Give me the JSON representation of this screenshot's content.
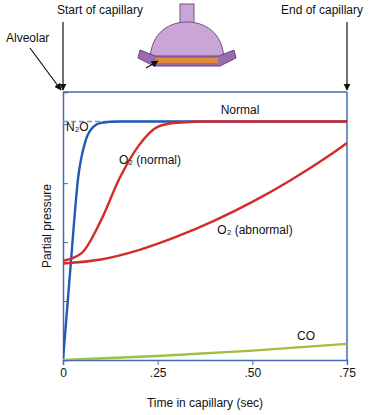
{
  "chart_data": {
    "type": "line",
    "x_label": "Time in capillary (sec)",
    "y_label": "Partial pressure",
    "annotations": [
      "Start of capillary",
      "End of capillary",
      "Alveolar"
    ],
    "xlim": [
      0,
      0.75
    ],
    "ylim": [
      0,
      100
    ],
    "xticks": [
      0,
      {
        "value": 0.25,
        "label": ".25"
      },
      {
        "value": 0.5,
        "label": ".50"
      },
      {
        "value": 0.75,
        "label": ".75"
      }
    ],
    "yticks": [
      0,
      22,
      44,
      66,
      88
    ],
    "tick_labels": "x",
    "grid": false,
    "series": [
      {
        "name": "Normal",
        "color": "#6f97d8",
        "line_style": "dashed",
        "x": [
          0,
          0.75
        ],
        "values": [
          89,
          89
        ]
      },
      {
        "name": "N₂O",
        "color": "#2358b5",
        "line_style": "solid",
        "x": [
          0,
          0.02,
          0.04,
          0.06,
          0.08,
          0.1,
          0.15,
          0.75
        ],
        "values": [
          0,
          35,
          68,
          82,
          87,
          88.5,
          89,
          89
        ]
      },
      {
        "name": "O₂ (normal)",
        "color": "#d42a2a",
        "line_style": "solid",
        "x": [
          0,
          0.05,
          0.1,
          0.15,
          0.2,
          0.25,
          0.3,
          0.4,
          0.75
        ],
        "values": [
          37,
          40,
          52,
          68,
          80,
          87,
          88.5,
          89,
          89
        ]
      },
      {
        "name": "O₂ (abnormal)",
        "color": "#d42a2a",
        "line_style": "solid",
        "x": [
          0,
          0.1,
          0.2,
          0.3,
          0.4,
          0.5,
          0.6,
          0.7,
          0.75
        ],
        "values": [
          36,
          37.5,
          41,
          46,
          52,
          59,
          67,
          76,
          81
        ]
      },
      {
        "name": "CO",
        "color": "#a3bd3c",
        "line_style": "solid",
        "x": [
          0,
          0.25,
          0.5,
          0.75
        ],
        "values": [
          0,
          1.5,
          3.5,
          6
        ]
      }
    ]
  }
}
